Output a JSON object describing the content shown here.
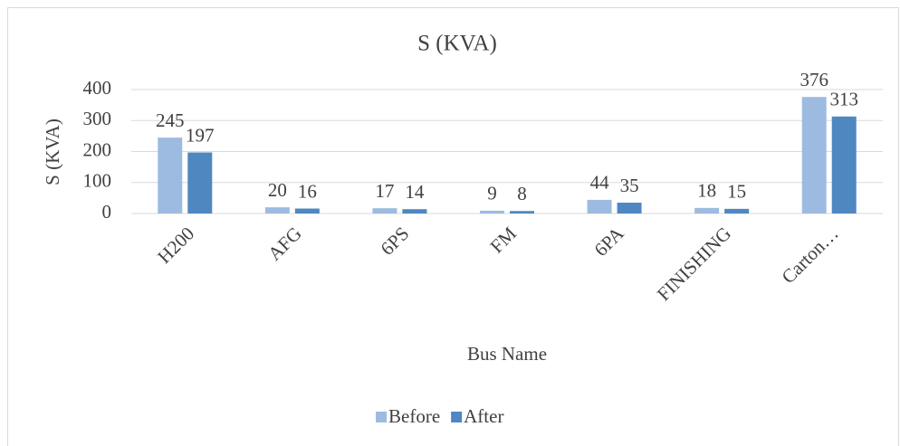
{
  "chart_data": {
    "type": "bar",
    "title": "S (KVA)",
    "x_label": "Bus Name",
    "y_label": "S (KVA)",
    "categories": [
      "H200",
      "AFG",
      "6PS",
      "FM",
      "6PA",
      "FINISHING",
      "Carton…"
    ],
    "series": [
      {
        "name": "Before",
        "color": "#9dbbe1",
        "values": [
          245,
          20,
          17,
          9,
          44,
          18,
          376
        ]
      },
      {
        "name": "After",
        "color": "#4f87c1",
        "values": [
          197,
          16,
          14,
          8,
          35,
          15,
          313
        ]
      }
    ],
    "ylim": [
      0,
      400
    ],
    "yticks": [
      0,
      100,
      200,
      300,
      400
    ],
    "grid": true,
    "legend": "bottom"
  }
}
